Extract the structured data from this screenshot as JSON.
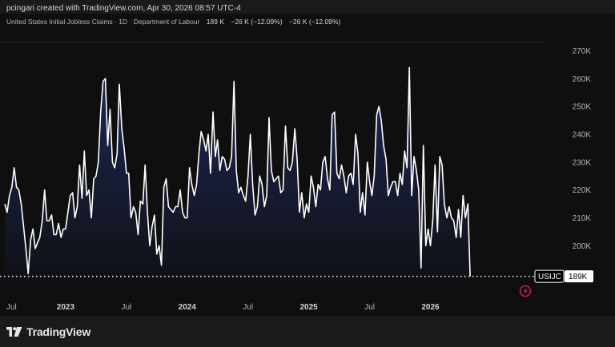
{
  "header": {
    "credit": "pcingari created with TradingView.com, Apr 30, 2026 08:57 UTC-4"
  },
  "legend": {
    "title": "United States Initial Jobless Claims · 1D · Department of Labour",
    "value": "189 K",
    "change1": "−26 K (−12.09%)",
    "change2": "−26 K (−12.09%)"
  },
  "footer": {
    "brand": "TradingView"
  },
  "price_tag": {
    "symbol": "USIJC",
    "value": "189K"
  },
  "icons": {
    "logo": "tradingview-logo-icon",
    "flash": "flash-event-icon"
  },
  "colors": {
    "line": "#ffffff",
    "area_top": "#1e2a5e",
    "area_bottom": "#0f0f0f",
    "background": "#0f0f0f",
    "flash_icon": "#e91e63"
  },
  "chart_data": {
    "type": "area",
    "title": "United States Initial Jobless Claims",
    "xlabel": "",
    "ylabel": "",
    "ylim": [
      180,
      273
    ],
    "y_ticks": [
      {
        "value": 200,
        "label": "200K"
      },
      {
        "value": 210,
        "label": "210K"
      },
      {
        "value": 220,
        "label": "220K"
      },
      {
        "value": 230,
        "label": "230K"
      },
      {
        "value": 240,
        "label": "240K"
      },
      {
        "value": 250,
        "label": "250K"
      },
      {
        "value": 260,
        "label": "260K"
      },
      {
        "value": 270,
        "label": "270K"
      }
    ],
    "x_ticks": [
      {
        "t": 2022.5,
        "label": "Jul",
        "year": false
      },
      {
        "t": 2023.0,
        "label": "2023",
        "year": true
      },
      {
        "t": 2023.5,
        "label": "Jul",
        "year": false
      },
      {
        "t": 2024.0,
        "label": "2024",
        "year": true
      },
      {
        "t": 2024.5,
        "label": "Jul",
        "year": false
      },
      {
        "t": 2025.0,
        "label": "2025",
        "year": true
      },
      {
        "t": 2025.5,
        "label": "Jul",
        "year": false
      },
      {
        "t": 2026.0,
        "label": "2026",
        "year": true
      }
    ],
    "xlim": [
      2022.5,
      2026.82
    ],
    "last_value": 189,
    "series": [
      {
        "values": [
          [
            2022.5,
            215
          ],
          [
            2022.519,
            212
          ],
          [
            2022.538,
            218
          ],
          [
            2022.558,
            221
          ],
          [
            2022.577,
            228
          ],
          [
            2022.596,
            221
          ],
          [
            2022.615,
            220
          ],
          [
            2022.635,
            215
          ],
          [
            2022.654,
            207
          ],
          [
            2022.673,
            199
          ],
          [
            2022.692,
            190
          ],
          [
            2022.712,
            202
          ],
          [
            2022.731,
            206
          ],
          [
            2022.75,
            199
          ],
          [
            2022.769,
            201
          ],
          [
            2022.788,
            203
          ],
          [
            2022.808,
            209
          ],
          [
            2022.827,
            220
          ],
          [
            2022.846,
            209
          ],
          [
            2022.865,
            209
          ],
          [
            2022.885,
            211
          ],
          [
            2022.904,
            204
          ],
          [
            2022.923,
            204
          ],
          [
            2022.942,
            208
          ],
          [
            2022.962,
            203
          ],
          [
            2022.981,
            206
          ],
          [
            2023.0,
            206
          ],
          [
            2023.019,
            212
          ],
          [
            2023.038,
            218
          ],
          [
            2023.058,
            219
          ],
          [
            2023.077,
            210
          ],
          [
            2023.096,
            214
          ],
          [
            2023.115,
            229
          ],
          [
            2023.135,
            217
          ],
          [
            2023.154,
            234
          ],
          [
            2023.173,
            218
          ],
          [
            2023.192,
            220
          ],
          [
            2023.212,
            210
          ],
          [
            2023.231,
            224
          ],
          [
            2023.25,
            225
          ],
          [
            2023.269,
            230
          ],
          [
            2023.288,
            248
          ],
          [
            2023.308,
            259
          ],
          [
            2023.327,
            260
          ],
          [
            2023.346,
            236
          ],
          [
            2023.365,
            249
          ],
          [
            2023.385,
            230
          ],
          [
            2023.404,
            228
          ],
          [
            2023.423,
            233
          ],
          [
            2023.442,
            258
          ],
          [
            2023.462,
            242
          ],
          [
            2023.481,
            235
          ],
          [
            2023.5,
            226
          ],
          [
            2023.519,
            226
          ],
          [
            2023.538,
            210
          ],
          [
            2023.558,
            214
          ],
          [
            2023.577,
            212
          ],
          [
            2023.596,
            204
          ],
          [
            2023.615,
            216
          ],
          [
            2023.635,
            215
          ],
          [
            2023.654,
            229
          ],
          [
            2023.673,
            212
          ],
          [
            2023.692,
            200
          ],
          [
            2023.712,
            207
          ],
          [
            2023.731,
            211
          ],
          [
            2023.75,
            197
          ],
          [
            2023.769,
            200
          ],
          [
            2023.788,
            193
          ],
          [
            2023.808,
            221
          ],
          [
            2023.827,
            224
          ],
          [
            2023.846,
            214
          ],
          [
            2023.865,
            213
          ],
          [
            2023.885,
            212
          ],
          [
            2023.904,
            214
          ],
          [
            2023.923,
            214
          ],
          [
            2023.942,
            220
          ],
          [
            2023.962,
            212
          ],
          [
            2023.981,
            210
          ],
          [
            2024.0,
            210
          ],
          [
            2024.019,
            228
          ],
          [
            2024.038,
            222
          ],
          [
            2024.058,
            218
          ],
          [
            2024.077,
            222
          ],
          [
            2024.096,
            233
          ],
          [
            2024.115,
            241
          ],
          [
            2024.135,
            238
          ],
          [
            2024.154,
            234
          ],
          [
            2024.173,
            240
          ],
          [
            2024.192,
            226
          ],
          [
            2024.212,
            248
          ],
          [
            2024.231,
            232
          ],
          [
            2024.25,
            238
          ],
          [
            2024.269,
            227
          ],
          [
            2024.288,
            232
          ],
          [
            2024.308,
            231
          ],
          [
            2024.327,
            227
          ],
          [
            2024.346,
            228
          ],
          [
            2024.365,
            232
          ],
          [
            2024.385,
            259
          ],
          [
            2024.404,
            227
          ],
          [
            2024.423,
            219
          ],
          [
            2024.442,
            221
          ],
          [
            2024.462,
            218
          ],
          [
            2024.481,
            216
          ],
          [
            2024.5,
            225
          ],
          [
            2024.519,
            240
          ],
          [
            2024.538,
            222
          ],
          [
            2024.558,
            211
          ],
          [
            2024.577,
            214
          ],
          [
            2024.596,
            225
          ],
          [
            2024.615,
            222
          ],
          [
            2024.635,
            214
          ],
          [
            2024.654,
            218
          ],
          [
            2024.673,
            246
          ],
          [
            2024.692,
            227
          ],
          [
            2024.712,
            223
          ],
          [
            2024.731,
            224
          ],
          [
            2024.75,
            225
          ],
          [
            2024.769,
            219
          ],
          [
            2024.788,
            220
          ],
          [
            2024.808,
            243
          ],
          [
            2024.827,
            228
          ],
          [
            2024.846,
            227
          ],
          [
            2024.865,
            230
          ],
          [
            2024.885,
            242
          ],
          [
            2024.904,
            231
          ],
          [
            2024.923,
            212
          ],
          [
            2024.942,
            219
          ],
          [
            2024.962,
            210
          ],
          [
            2024.981,
            215
          ],
          [
            2025.0,
            212
          ],
          [
            2025.019,
            225
          ],
          [
            2025.038,
            221
          ],
          [
            2025.058,
            214
          ],
          [
            2025.077,
            222
          ],
          [
            2025.096,
            220
          ],
          [
            2025.115,
            230
          ],
          [
            2025.135,
            232
          ],
          [
            2025.154,
            224
          ],
          [
            2025.173,
            220
          ],
          [
            2025.192,
            247
          ],
          [
            2025.212,
            248
          ],
          [
            2025.231,
            226
          ],
          [
            2025.25,
            224
          ],
          [
            2025.269,
            229
          ],
          [
            2025.288,
            225
          ],
          [
            2025.308,
            219
          ],
          [
            2025.327,
            225
          ],
          [
            2025.346,
            226
          ],
          [
            2025.365,
            222
          ],
          [
            2025.385,
            240
          ],
          [
            2025.404,
            233
          ],
          [
            2025.423,
            212
          ],
          [
            2025.442,
            219
          ],
          [
            2025.462,
            211
          ],
          [
            2025.481,
            230
          ],
          [
            2025.5,
            223
          ],
          [
            2025.519,
            218
          ],
          [
            2025.538,
            225
          ],
          [
            2025.558,
            247
          ],
          [
            2025.577,
            250
          ],
          [
            2025.596,
            245
          ],
          [
            2025.615,
            236
          ],
          [
            2025.635,
            231
          ],
          [
            2025.654,
            218
          ],
          [
            2025.673,
            221
          ],
          [
            2025.692,
            223
          ],
          [
            2025.712,
            223
          ],
          [
            2025.731,
            218
          ],
          [
            2025.75,
            226
          ],
          [
            2025.769,
            222
          ],
          [
            2025.788,
            234
          ],
          [
            2025.808,
            228
          ],
          [
            2025.827,
            264
          ],
          [
            2025.846,
            218
          ],
          [
            2025.865,
            232
          ],
          [
            2025.885,
            227
          ],
          [
            2025.904,
            220
          ],
          [
            2025.923,
            192
          ],
          [
            2025.942,
            236
          ],
          [
            2025.962,
            200
          ],
          [
            2025.981,
            206
          ],
          [
            2026.0,
            200
          ],
          [
            2026.019,
            209
          ],
          [
            2026.038,
            229
          ],
          [
            2026.058,
            205
          ],
          [
            2026.077,
            232
          ],
          [
            2026.096,
            229
          ],
          [
            2026.115,
            215
          ],
          [
            2026.135,
            210
          ],
          [
            2026.154,
            214
          ],
          [
            2026.173,
            210
          ],
          [
            2026.192,
            209
          ],
          [
            2026.212,
            203
          ],
          [
            2026.231,
            213
          ],
          [
            2026.25,
            203
          ],
          [
            2026.269,
            218
          ],
          [
            2026.288,
            210
          ],
          [
            2026.308,
            215
          ],
          [
            2026.327,
            189
          ]
        ]
      }
    ]
  }
}
